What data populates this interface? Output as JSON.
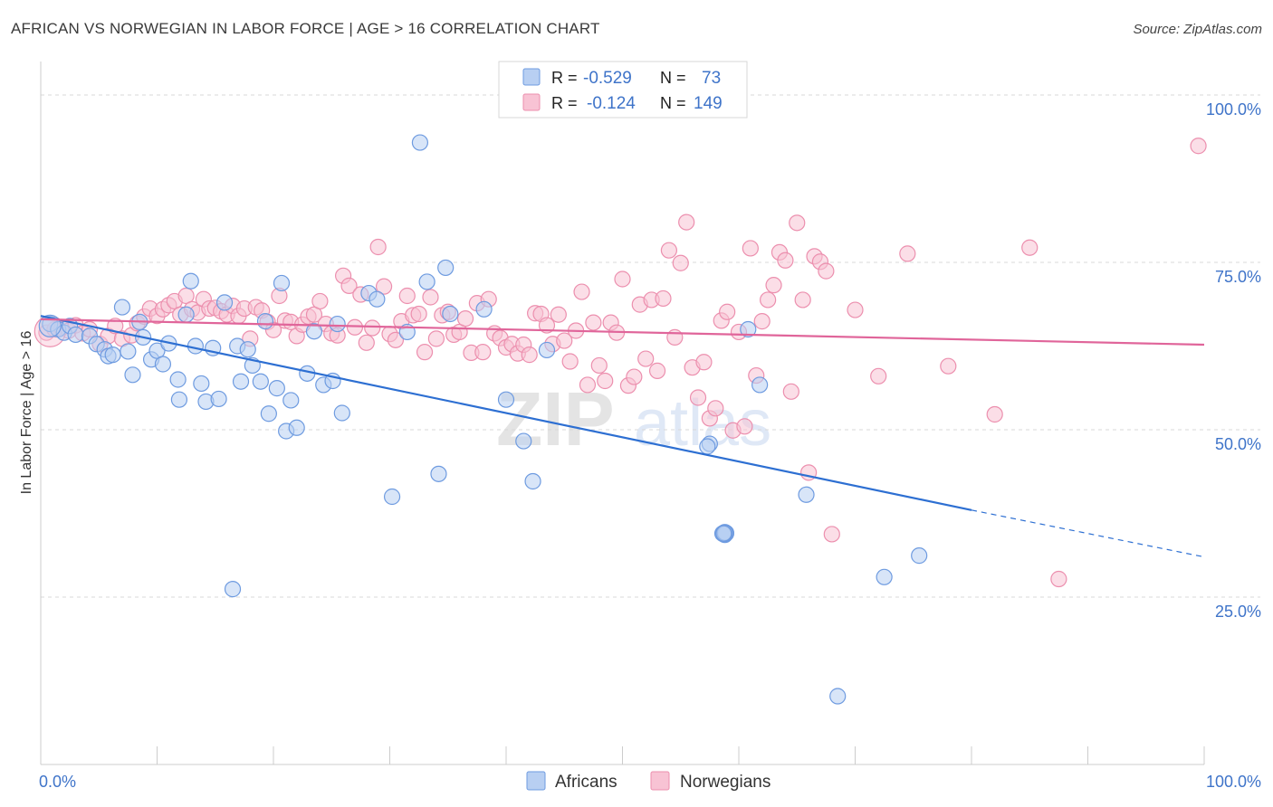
{
  "header": {
    "title": "AFRICAN VS NORWEGIAN IN LABOR FORCE | AGE > 16 CORRELATION CHART",
    "source": "Source: ZipAtlas.com"
  },
  "watermark": {
    "zip": "ZIP",
    "atlas": "atlas"
  },
  "colors": {
    "africans_fill": "#b8cff2",
    "africans_stroke": "#6e9be0",
    "africans_line": "#2d6fd2",
    "norwegians_fill": "#f8c3d4",
    "norwegians_stroke": "#ec8fae",
    "norwegians_line": "#e0659a",
    "axis_text": "#3f74c9",
    "grid": "#d8d8d8"
  },
  "stats": {
    "africans": {
      "r_label": "R =",
      "r_value": "-0.529",
      "n_label": "N =",
      "n_value": "73"
    },
    "norwegians": {
      "r_label": "R =",
      "r_value": "-0.124",
      "n_label": "N =",
      "n_value": "149"
    }
  },
  "chart_data": {
    "type": "scatter",
    "title": "AFRICAN VS NORWEGIAN IN LABOR FORCE | AGE > 16 CORRELATION CHART",
    "xlabel": "",
    "ylabel": "In Labor Force | Age > 16",
    "xlim": [
      0,
      100
    ],
    "ylim": [
      0,
      105
    ],
    "x_tick_labels": [
      "0.0%",
      "100.0%"
    ],
    "y_ticks": [
      25,
      50,
      75,
      100
    ],
    "y_tick_labels": [
      "25.0%",
      "50.0%",
      "75.0%",
      "100.0%"
    ],
    "grid": true,
    "legend_position": "bottom-center",
    "series": [
      {
        "name": "Africans",
        "trend": {
          "x0": 0,
          "y0": 67.0,
          "x1": 80,
          "y1": 38.0,
          "dashed_to_x": 100,
          "dashed_to_y": 31.0
        },
        "points": [
          [
            0.8,
            65.8
          ],
          [
            1.5,
            65.0
          ],
          [
            2.0,
            64.5
          ],
          [
            2.5,
            65.5
          ],
          [
            3.0,
            64.2
          ],
          [
            4.2,
            64.0
          ],
          [
            4.8,
            62.8
          ],
          [
            5.5,
            62.0
          ],
          [
            5.8,
            61.0
          ],
          [
            6.2,
            61.2
          ],
          [
            7.0,
            68.3
          ],
          [
            7.5,
            61.7
          ],
          [
            7.9,
            58.2
          ],
          [
            8.5,
            66.1
          ],
          [
            8.8,
            63.8
          ],
          [
            9.5,
            60.5
          ],
          [
            10.0,
            61.8
          ],
          [
            10.5,
            59.8
          ],
          [
            11.0,
            62.9
          ],
          [
            11.8,
            57.5
          ],
          [
            11.9,
            54.5
          ],
          [
            12.5,
            67.2
          ],
          [
            12.9,
            72.2
          ],
          [
            13.3,
            62.5
          ],
          [
            13.8,
            56.9
          ],
          [
            14.2,
            54.2
          ],
          [
            14.8,
            62.2
          ],
          [
            15.3,
            54.6
          ],
          [
            15.8,
            69.0
          ],
          [
            16.5,
            26.2
          ],
          [
            16.9,
            62.5
          ],
          [
            17.2,
            57.2
          ],
          [
            17.8,
            62.0
          ],
          [
            18.2,
            59.6
          ],
          [
            18.9,
            57.2
          ],
          [
            19.3,
            66.2
          ],
          [
            19.6,
            52.4
          ],
          [
            20.3,
            56.2
          ],
          [
            20.7,
            71.9
          ],
          [
            21.1,
            49.8
          ],
          [
            21.5,
            54.4
          ],
          [
            22.0,
            50.3
          ],
          [
            22.9,
            58.4
          ],
          [
            23.5,
            64.7
          ],
          [
            24.3,
            56.7
          ],
          [
            25.1,
            57.3
          ],
          [
            25.5,
            65.8
          ],
          [
            25.9,
            52.5
          ],
          [
            28.2,
            70.4
          ],
          [
            28.9,
            69.5
          ],
          [
            30.2,
            40.0
          ],
          [
            31.5,
            64.6
          ],
          [
            32.6,
            92.9
          ],
          [
            33.2,
            72.1
          ],
          [
            34.2,
            43.4
          ],
          [
            34.8,
            74.2
          ],
          [
            35.2,
            67.3
          ],
          [
            38.1,
            68.0
          ],
          [
            40.0,
            54.5
          ],
          [
            41.5,
            48.3
          ],
          [
            42.3,
            42.3
          ],
          [
            43.5,
            61.9
          ],
          [
            57.5,
            47.9
          ],
          [
            57.3,
            47.5
          ],
          [
            58.8,
            34.5
          ],
          [
            58.8,
            34.7
          ],
          [
            58.8,
            34.3
          ],
          [
            58.7,
            34.4
          ],
          [
            58.9,
            34.6
          ],
          [
            58.6,
            34.5
          ],
          [
            58.8,
            34.4
          ],
          [
            58.7,
            34.6
          ],
          [
            58.9,
            34.5
          ],
          [
            58.8,
            34.5
          ],
          [
            58.8,
            34.6
          ],
          [
            58.7,
            34.5
          ],
          [
            60.8,
            65.0
          ],
          [
            61.8,
            56.7
          ],
          [
            65.8,
            40.3
          ],
          [
            68.5,
            10.2
          ],
          [
            72.5,
            28.0
          ],
          [
            75.5,
            31.2
          ]
        ]
      },
      {
        "name": "Norwegians",
        "trend": {
          "x0": 0,
          "y0": 66.5,
          "x1": 100,
          "y1": 62.7
        },
        "points": [
          [
            0.5,
            64.5
          ],
          [
            1.2,
            65.0
          ],
          [
            1.8,
            65.2
          ],
          [
            2.4,
            64.8
          ],
          [
            3.0,
            65.6
          ],
          [
            3.6,
            64.4
          ],
          [
            4.2,
            65.0
          ],
          [
            5.1,
            62.8
          ],
          [
            5.8,
            64.0
          ],
          [
            6.4,
            65.5
          ],
          [
            7.0,
            63.6
          ],
          [
            7.8,
            64.1
          ],
          [
            8.3,
            65.9
          ],
          [
            8.9,
            66.9
          ],
          [
            9.4,
            68.1
          ],
          [
            10.0,
            67.0
          ],
          [
            10.5,
            68.0
          ],
          [
            11.0,
            68.6
          ],
          [
            11.5,
            69.2
          ],
          [
            12.0,
            67.2
          ],
          [
            12.5,
            70.0
          ],
          [
            13.0,
            68.0
          ],
          [
            13.5,
            67.5
          ],
          [
            14.0,
            69.5
          ],
          [
            14.5,
            68.1
          ],
          [
            15.0,
            68.2
          ],
          [
            15.5,
            67.7
          ],
          [
            16.0,
            67.2
          ],
          [
            16.5,
            68.5
          ],
          [
            17.0,
            67.0
          ],
          [
            17.5,
            68.1
          ],
          [
            18.0,
            63.6
          ],
          [
            18.5,
            68.3
          ],
          [
            19.0,
            67.8
          ],
          [
            19.5,
            66.1
          ],
          [
            20.0,
            64.9
          ],
          [
            20.5,
            70.0
          ],
          [
            21.0,
            66.3
          ],
          [
            21.5,
            66.1
          ],
          [
            22.0,
            64.0
          ],
          [
            22.5,
            65.7
          ],
          [
            23.0,
            66.9
          ],
          [
            23.5,
            67.2
          ],
          [
            24.0,
            69.2
          ],
          [
            24.5,
            65.8
          ],
          [
            25.0,
            64.4
          ],
          [
            25.5,
            64.1
          ],
          [
            26.0,
            73.0
          ],
          [
            26.5,
            71.5
          ],
          [
            27.0,
            65.3
          ],
          [
            27.5,
            70.2
          ],
          [
            28.0,
            63.0
          ],
          [
            28.5,
            65.2
          ],
          [
            29.0,
            77.3
          ],
          [
            29.5,
            71.4
          ],
          [
            30.0,
            64.3
          ],
          [
            30.5,
            63.4
          ],
          [
            31.0,
            66.2
          ],
          [
            31.5,
            70.0
          ],
          [
            32.0,
            67.1
          ],
          [
            32.5,
            67.3
          ],
          [
            33.0,
            61.6
          ],
          [
            33.5,
            69.8
          ],
          [
            34.0,
            63.6
          ],
          [
            34.5,
            67.1
          ],
          [
            35.0,
            67.6
          ],
          [
            35.5,
            64.2
          ],
          [
            36.0,
            64.6
          ],
          [
            36.5,
            66.6
          ],
          [
            37.0,
            61.5
          ],
          [
            37.5,
            68.9
          ],
          [
            38.0,
            61.6
          ],
          [
            38.5,
            69.5
          ],
          [
            39.0,
            64.4
          ],
          [
            39.5,
            63.7
          ],
          [
            40.0,
            62.3
          ],
          [
            40.5,
            62.8
          ],
          [
            41.0,
            61.4
          ],
          [
            41.5,
            62.7
          ],
          [
            42.0,
            61.2
          ],
          [
            42.5,
            67.4
          ],
          [
            43.0,
            67.3
          ],
          [
            43.5,
            65.6
          ],
          [
            44.0,
            62.8
          ],
          [
            44.5,
            67.2
          ],
          [
            45.0,
            63.3
          ],
          [
            45.5,
            60.2
          ],
          [
            46.0,
            64.8
          ],
          [
            46.5,
            70.6
          ],
          [
            47.0,
            56.7
          ],
          [
            47.5,
            66.0
          ],
          [
            48.0,
            59.6
          ],
          [
            48.5,
            57.3
          ],
          [
            49.0,
            66.0
          ],
          [
            49.5,
            64.5
          ],
          [
            50.0,
            72.5
          ],
          [
            50.5,
            56.6
          ],
          [
            51.0,
            57.9
          ],
          [
            51.5,
            68.7
          ],
          [
            52.0,
            60.6
          ],
          [
            52.5,
            69.4
          ],
          [
            53.0,
            58.8
          ],
          [
            53.5,
            69.6
          ],
          [
            54.0,
            76.8
          ],
          [
            54.5,
            63.8
          ],
          [
            55.0,
            74.9
          ],
          [
            55.5,
            81.0
          ],
          [
            56.0,
            59.3
          ],
          [
            56.5,
            54.8
          ],
          [
            57.0,
            60.1
          ],
          [
            57.5,
            51.7
          ],
          [
            58.0,
            53.2
          ],
          [
            58.5,
            66.3
          ],
          [
            59.0,
            67.6
          ],
          [
            59.5,
            49.9
          ],
          [
            60.0,
            64.6
          ],
          [
            60.5,
            50.5
          ],
          [
            61.0,
            77.1
          ],
          [
            61.5,
            58.1
          ],
          [
            62.0,
            66.2
          ],
          [
            62.5,
            69.4
          ],
          [
            63.0,
            71.6
          ],
          [
            63.5,
            76.5
          ],
          [
            64.0,
            75.3
          ],
          [
            64.5,
            55.7
          ],
          [
            65.0,
            80.9
          ],
          [
            65.5,
            69.4
          ],
          [
            66.0,
            43.6
          ],
          [
            66.5,
            75.9
          ],
          [
            67.0,
            75.1
          ],
          [
            67.5,
            73.7
          ],
          [
            68.0,
            34.4
          ],
          [
            70.0,
            67.9
          ],
          [
            72.0,
            58.0
          ],
          [
            74.5,
            76.3
          ],
          [
            78.0,
            59.5
          ],
          [
            82.0,
            52.3
          ],
          [
            85.0,
            77.2
          ],
          [
            87.5,
            27.7
          ],
          [
            99.5,
            92.4
          ]
        ]
      }
    ]
  }
}
